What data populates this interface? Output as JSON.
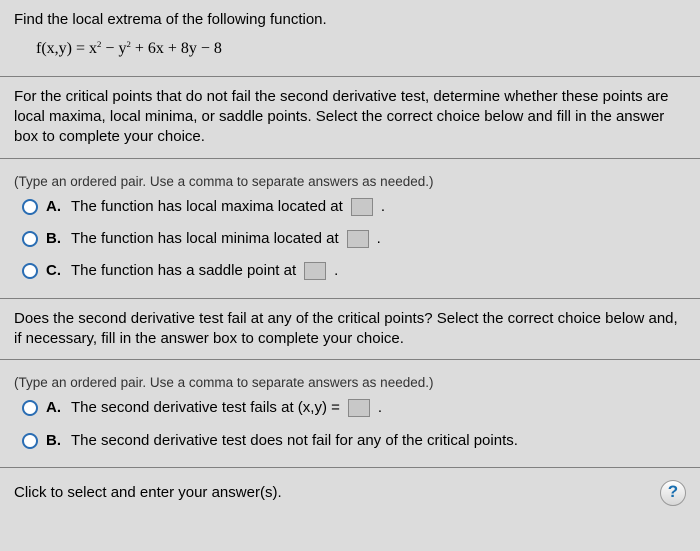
{
  "q": {
    "prompt": "Find the local extrema of the following function.",
    "equation": "f(x,y) = x² − y² + 6x + 8y − 8"
  },
  "part1": {
    "intro": "For the critical points that do not fail the second derivative test, determine whether these points are local maxima, local minima, or saddle points. Select the correct choice below and fill in the answer box to complete your choice.",
    "note": "(Type an ordered pair. Use a comma to separate answers as needed.)",
    "opts": {
      "a": {
        "letter": "A.",
        "text": "The function has local maxima located at"
      },
      "b": {
        "letter": "B.",
        "text": "The function has local minima located at"
      },
      "c": {
        "letter": "C.",
        "text": "The function has a saddle point at"
      }
    }
  },
  "part2": {
    "intro": "Does the second derivative test fail at any of the critical points? Select the correct choice below and, if necessary, fill in the answer box to complete your choice.",
    "note": "(Type an ordered pair. Use a comma to separate answers as needed.)",
    "opts": {
      "a": {
        "letter": "A.",
        "text_pre": "The second derivative test fails at (x,y) ="
      },
      "b": {
        "letter": "B.",
        "text": "The second derivative test does not fail for any of the critical points."
      }
    }
  },
  "footer": {
    "msg": "Click to select and enter your answer(s).",
    "help": "?"
  }
}
